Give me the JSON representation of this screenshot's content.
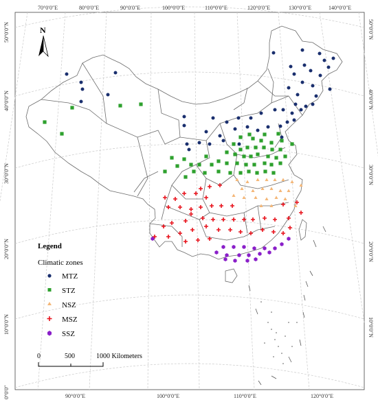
{
  "graticule": {
    "top_labels": [
      "70°0′0″E",
      "80°0′0″E",
      "90°0′0″E",
      "100°0′0″E",
      "110°0′0″E",
      "120°0′0″E",
      "130°0′0″E",
      "140°0′0″E"
    ],
    "bottom_labels": [
      "90°0′0″E",
      "100°0′0″E",
      "110°0′0″E",
      "120°0′0″E"
    ],
    "left_labels": [
      "50°0′0″N",
      "40°0′0″N",
      "30°0′0″N",
      "20°0′0″N",
      "10°0′0″N",
      "0°0′0″"
    ],
    "right_labels": [
      "50°0′0″N",
      "40°0′0″N",
      "30°0′0″N",
      "20°0′0″N",
      "10°0′0″N"
    ]
  },
  "north_arrow": {
    "label": "N"
  },
  "legend": {
    "title": "Legend",
    "subtitle": "Climatic zones",
    "items": [
      {
        "label": "MTZ",
        "color": "#1a2f6e",
        "marker": "circle"
      },
      {
        "label": "STZ",
        "color": "#2ea12e",
        "marker": "square"
      },
      {
        "label": "NSZ",
        "color": "#f4b778",
        "marker": "triangle"
      },
      {
        "label": "MSZ",
        "color": "#e8121c",
        "marker": "cross"
      },
      {
        "label": "SSZ",
        "color": "#8a1fc9",
        "marker": "hexagon"
      }
    ]
  },
  "scale_bar": {
    "labels": [
      "0",
      "500",
      "1000 Kilometers"
    ]
  }
}
